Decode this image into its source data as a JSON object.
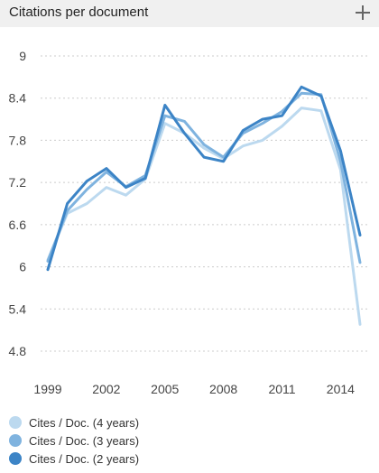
{
  "header": {
    "title": "Citations per document"
  },
  "colors": {
    "cites_4y": "#bcd9ef",
    "cites_3y": "#7fb3df",
    "cites_2y": "#3c84c6",
    "grid": "#cccccc"
  },
  "chart_data": {
    "type": "line",
    "title": "Citations per document",
    "x": [
      1999,
      2000,
      2001,
      2002,
      2003,
      2004,
      2005,
      2006,
      2007,
      2008,
      2009,
      2010,
      2011,
      2012,
      2013,
      2014,
      2015
    ],
    "xticks": [
      "1999",
      "2002",
      "2005",
      "2008",
      "2011",
      "2014"
    ],
    "yticks": [
      "9",
      "8.4",
      "7.8",
      "7.2",
      "6.6",
      "6",
      "5.4",
      "4.8"
    ],
    "ylim": [
      4.8,
      9
    ],
    "grid": true,
    "legend_position": "bottom",
    "series": [
      {
        "name": "Cites / Doc. (4 years)",
        "values": [
          6.1,
          6.76,
          6.9,
          7.13,
          7.02,
          7.25,
          8.04,
          7.9,
          7.69,
          7.54,
          7.72,
          7.8,
          8.0,
          8.26,
          8.22,
          7.38,
          5.18
        ]
      },
      {
        "name": "Cites / Doc. (3 years)",
        "values": [
          6.08,
          6.8,
          7.1,
          7.35,
          7.14,
          7.3,
          8.15,
          8.07,
          7.74,
          7.56,
          7.9,
          8.04,
          8.21,
          8.47,
          8.45,
          7.5,
          6.06
        ]
      },
      {
        "name": "Cites / Doc. (2 years)",
        "values": [
          5.96,
          6.9,
          7.22,
          7.4,
          7.13,
          7.26,
          8.3,
          7.9,
          7.56,
          7.5,
          7.94,
          8.1,
          8.15,
          8.56,
          8.43,
          7.65,
          6.45
        ]
      }
    ]
  }
}
